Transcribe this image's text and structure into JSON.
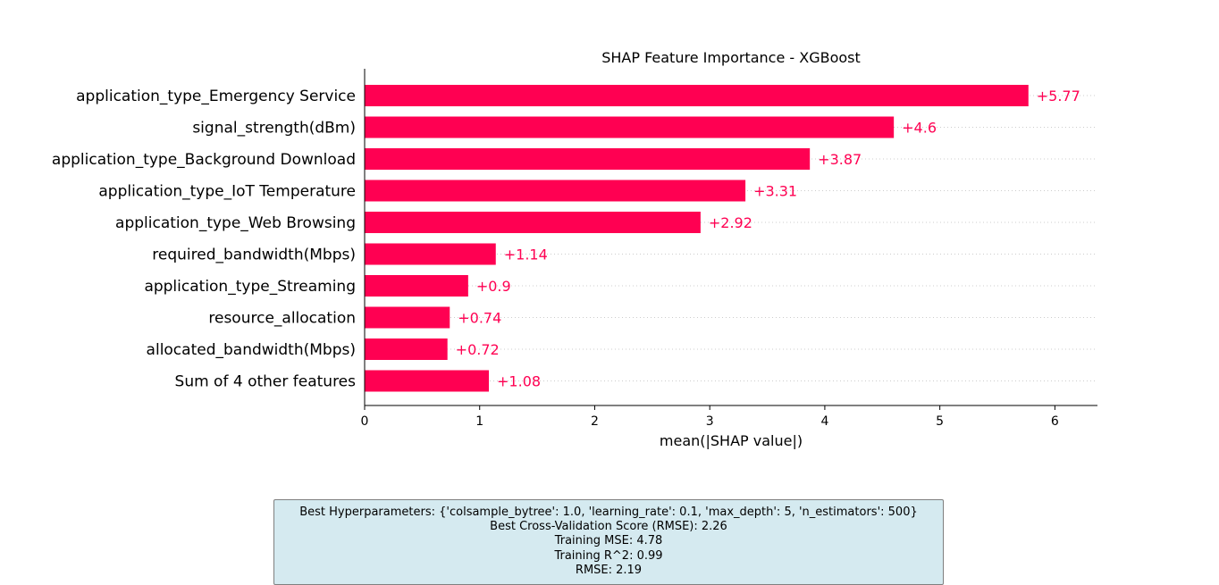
{
  "chart_data": {
    "type": "bar",
    "orientation": "horizontal",
    "title": "SHAP Feature Importance - XGBoost",
    "xlabel": "mean(|SHAP value|)",
    "ylabel": "",
    "xlim": [
      0,
      6.37
    ],
    "xticks": [
      0,
      1,
      2,
      3,
      4,
      5,
      6
    ],
    "grid": "dotted horizontal lines per row",
    "bar_color": "#ff0052",
    "label_color": "#ff0052",
    "categories": [
      "application_type_Emergency Service",
      "signal_strength(dBm)",
      "application_type_Background Download",
      "application_type_IoT Temperature",
      "application_type_Web Browsing",
      "required_bandwidth(Mbps)",
      "application_type_Streaming",
      "resource_allocation",
      "allocated_bandwidth(Mbps)",
      "Sum of 4 other features"
    ],
    "values": [
      5.77,
      4.6,
      3.87,
      3.31,
      2.92,
      1.14,
      0.9,
      0.74,
      0.72,
      1.08
    ],
    "value_labels": [
      "+5.77",
      "+4.6",
      "+3.87",
      "+3.31",
      "+2.92",
      "+1.14",
      "+0.9",
      "+0.74",
      "+0.72",
      "+1.08"
    ]
  },
  "info": {
    "best_params": "Best Hyperparameters: {'colsample_bytree': 1.0, 'learning_rate': 0.1, 'max_depth': 5, 'n_estimators': 500}",
    "cv_score": "Best Cross-Validation Score (RMSE): 2.26",
    "train_mse": "Training MSE: 4.78",
    "train_r2": "Training R^2: 0.99",
    "rmse": "RMSE: 2.19"
  }
}
